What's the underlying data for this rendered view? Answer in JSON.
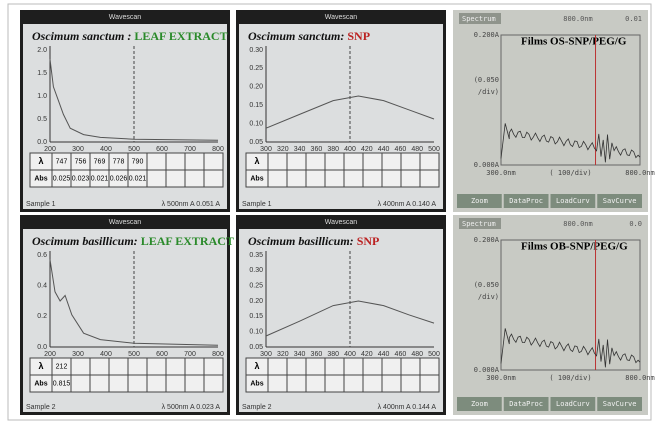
{
  "panels": [
    {
      "header": "Wavescan",
      "label": {
        "species": "Oscimum sanctum : ",
        "extract": "LEAF EXTRACT"
      },
      "yticks": [
        "2.0",
        "1.5",
        "1.0",
        "0.5",
        "0.0"
      ],
      "xticks": [
        "200",
        "300",
        "400",
        "500",
        "600",
        "700",
        "800"
      ],
      "table": {
        "lambda": "λ",
        "abs": "Abs",
        "lambda_values": [
          "747",
          "756",
          "769",
          "778",
          "790"
        ],
        "abs_values": [
          "0.025",
          "0.023",
          "0.021",
          "0.026",
          "0.021"
        ]
      },
      "footer_left": "Sample 1",
      "footer_right": "λ 500nm A 0.051 A"
    },
    {
      "header": "Wavescan",
      "label": {
        "species": "Oscimum sanctum: ",
        "extract": "SNP"
      },
      "yticks": [
        "0.30",
        "0.25",
        "0.20",
        "0.15",
        "0.10",
        "0.05"
      ],
      "xticks": [
        "300",
        "320",
        "340",
        "360",
        "380",
        "400",
        "420",
        "440",
        "460",
        "480",
        "500"
      ],
      "table": {
        "lambda": "λ",
        "abs": "Abs",
        "lambda_values": [],
        "abs_values": []
      },
      "footer_left": "Sample 1",
      "footer_right": "λ 400nm A 0.140 A"
    },
    {
      "header": "Spectrum",
      "header_wavelength": "800.0nm",
      "header_value": "0.01",
      "label": {
        "text": "Films OS-SNP/PEG/G"
      },
      "yticks": [
        "0.200A",
        "(0.050",
        "/div)",
        "0.000A"
      ],
      "xticks": [
        "300.0nm",
        "( 100/div)",
        "800.0nm"
      ],
      "buttons": [
        "Zoom",
        "DataProc",
        "LoadCurv",
        "SavCurve"
      ]
    },
    {
      "header": "Wavescan",
      "label": {
        "species": "Oscimum basillicum: ",
        "extract": "LEAF EXTRACT"
      },
      "yticks": [
        "0.6",
        "0.4",
        "0.2",
        "0.0"
      ],
      "xticks": [
        "200",
        "300",
        "400",
        "500",
        "600",
        "700",
        "800"
      ],
      "table": {
        "lambda": "λ",
        "abs": "Abs",
        "lambda_values": [
          "212"
        ],
        "abs_values": [
          "0.815"
        ]
      },
      "footer_left": "Sample 2",
      "footer_right": "λ 500nm A 0.023 A"
    },
    {
      "header": "Wavescan",
      "label": {
        "species": "Oscimum basillicum: ",
        "extract": "SNP"
      },
      "yticks": [
        "0.35",
        "0.30",
        "0.25",
        "0.20",
        "0.15",
        "0.10",
        "0.05"
      ],
      "xticks": [
        "300",
        "320",
        "340",
        "360",
        "380",
        "400",
        "420",
        "440",
        "460",
        "480",
        "500"
      ],
      "table": {
        "lambda": "λ",
        "abs": "Abs",
        "lambda_values": [],
        "abs_values": []
      },
      "footer_left": "Sample 2",
      "footer_right": "λ 400nm A 0.144 A"
    },
    {
      "header": "Spectrum",
      "header_wavelength": "800.0nm",
      "header_value": "0.0",
      "label": {
        "text": "Films OB-SNP/PEG/G"
      },
      "yticks": [
        "0.200A",
        "(0.050",
        "/div)",
        "0.000A"
      ],
      "xticks": [
        "300.0nm",
        "( 100/div)",
        "800.0nm"
      ],
      "buttons": [
        "Zoom",
        "DataProc",
        "LoadCurv",
        "SavCurve"
      ]
    }
  ]
}
